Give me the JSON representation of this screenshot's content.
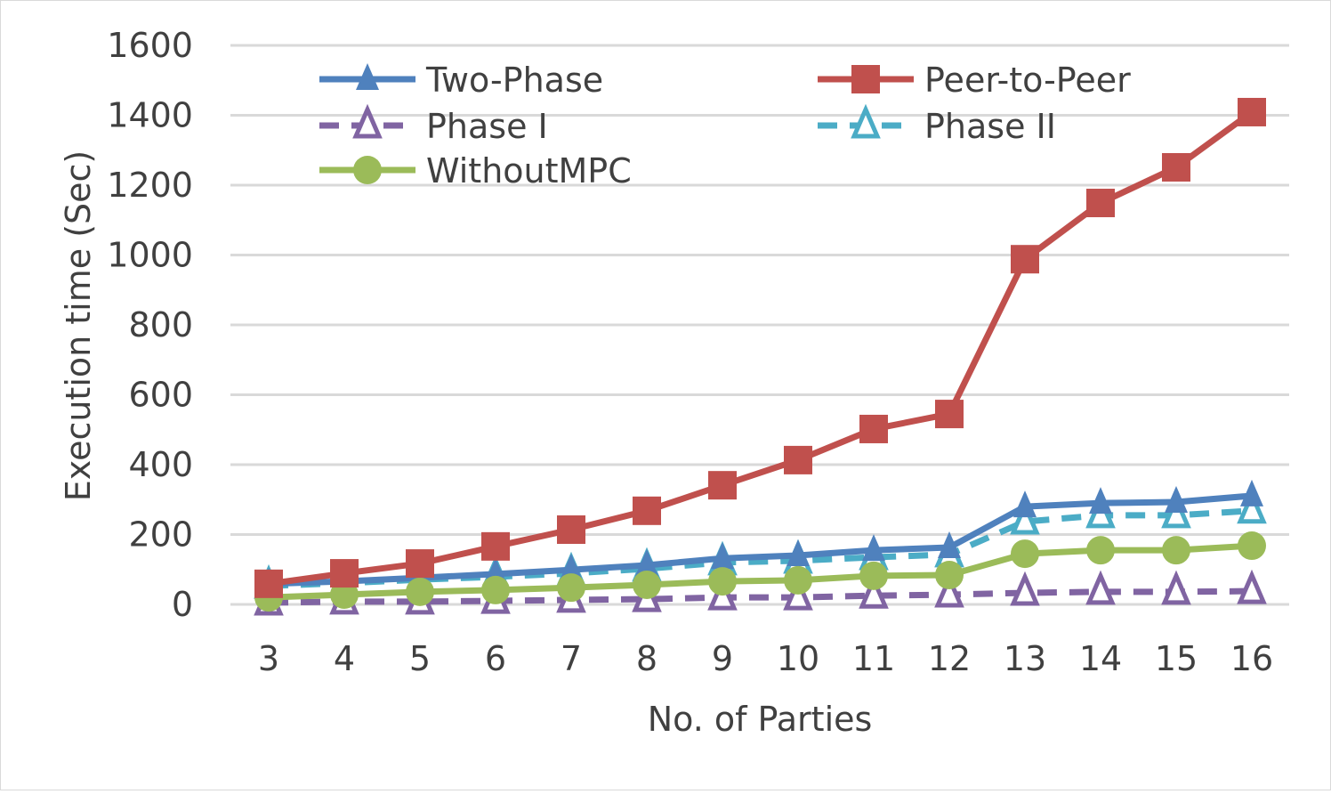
{
  "chart_data": {
    "type": "line",
    "title": "",
    "xlabel": "No. of Parties",
    "ylabel": "Execution time (Sec)",
    "ylim": [
      0,
      1600
    ],
    "yticks": [
      "0",
      "200",
      "400",
      "600",
      "800",
      "1000",
      "1200",
      "1400",
      "1600"
    ],
    "x": [
      "3",
      "4",
      "5",
      "6",
      "7",
      "8",
      "9",
      "10",
      "11",
      "12",
      "13",
      "14",
      "15",
      "16"
    ],
    "grid": true,
    "legend": "top-left",
    "series": [
      {
        "name": "Two-Phase",
        "color": "#4f81bd",
        "marker": "triangle",
        "dash": false,
        "values": [
          59,
          66,
          76,
          87,
          99,
          112,
          132,
          140,
          155,
          163,
          280,
          290,
          293,
          311
        ]
      },
      {
        "name": "Peer-to-Peer",
        "color": "#c0504d",
        "marker": "square",
        "dash": false,
        "values": [
          59,
          89,
          117,
          166,
          214,
          268,
          341,
          413,
          502,
          545,
          988,
          1149,
          1251,
          1409
        ]
      },
      {
        "name": "Phase I",
        "color": "#8064a2",
        "marker": "triangle-open",
        "dash": true,
        "values": [
          5,
          8,
          8,
          10,
          13,
          15,
          20,
          20,
          25,
          28,
          33,
          36,
          36,
          38
        ]
      },
      {
        "name": "Phase II",
        "color": "#4bacc6",
        "marker": "triangle-open",
        "dash": true,
        "values": [
          53,
          61,
          71,
          79,
          89,
          102,
          120,
          125,
          135,
          143,
          237,
          255,
          255,
          268
        ]
      },
      {
        "name": "WithoutMPC",
        "color": "#9bbb59",
        "marker": "circle",
        "dash": false,
        "values": [
          20,
          28,
          36,
          41,
          48,
          56,
          66,
          69,
          82,
          84,
          145,
          155,
          155,
          168
        ]
      }
    ]
  }
}
